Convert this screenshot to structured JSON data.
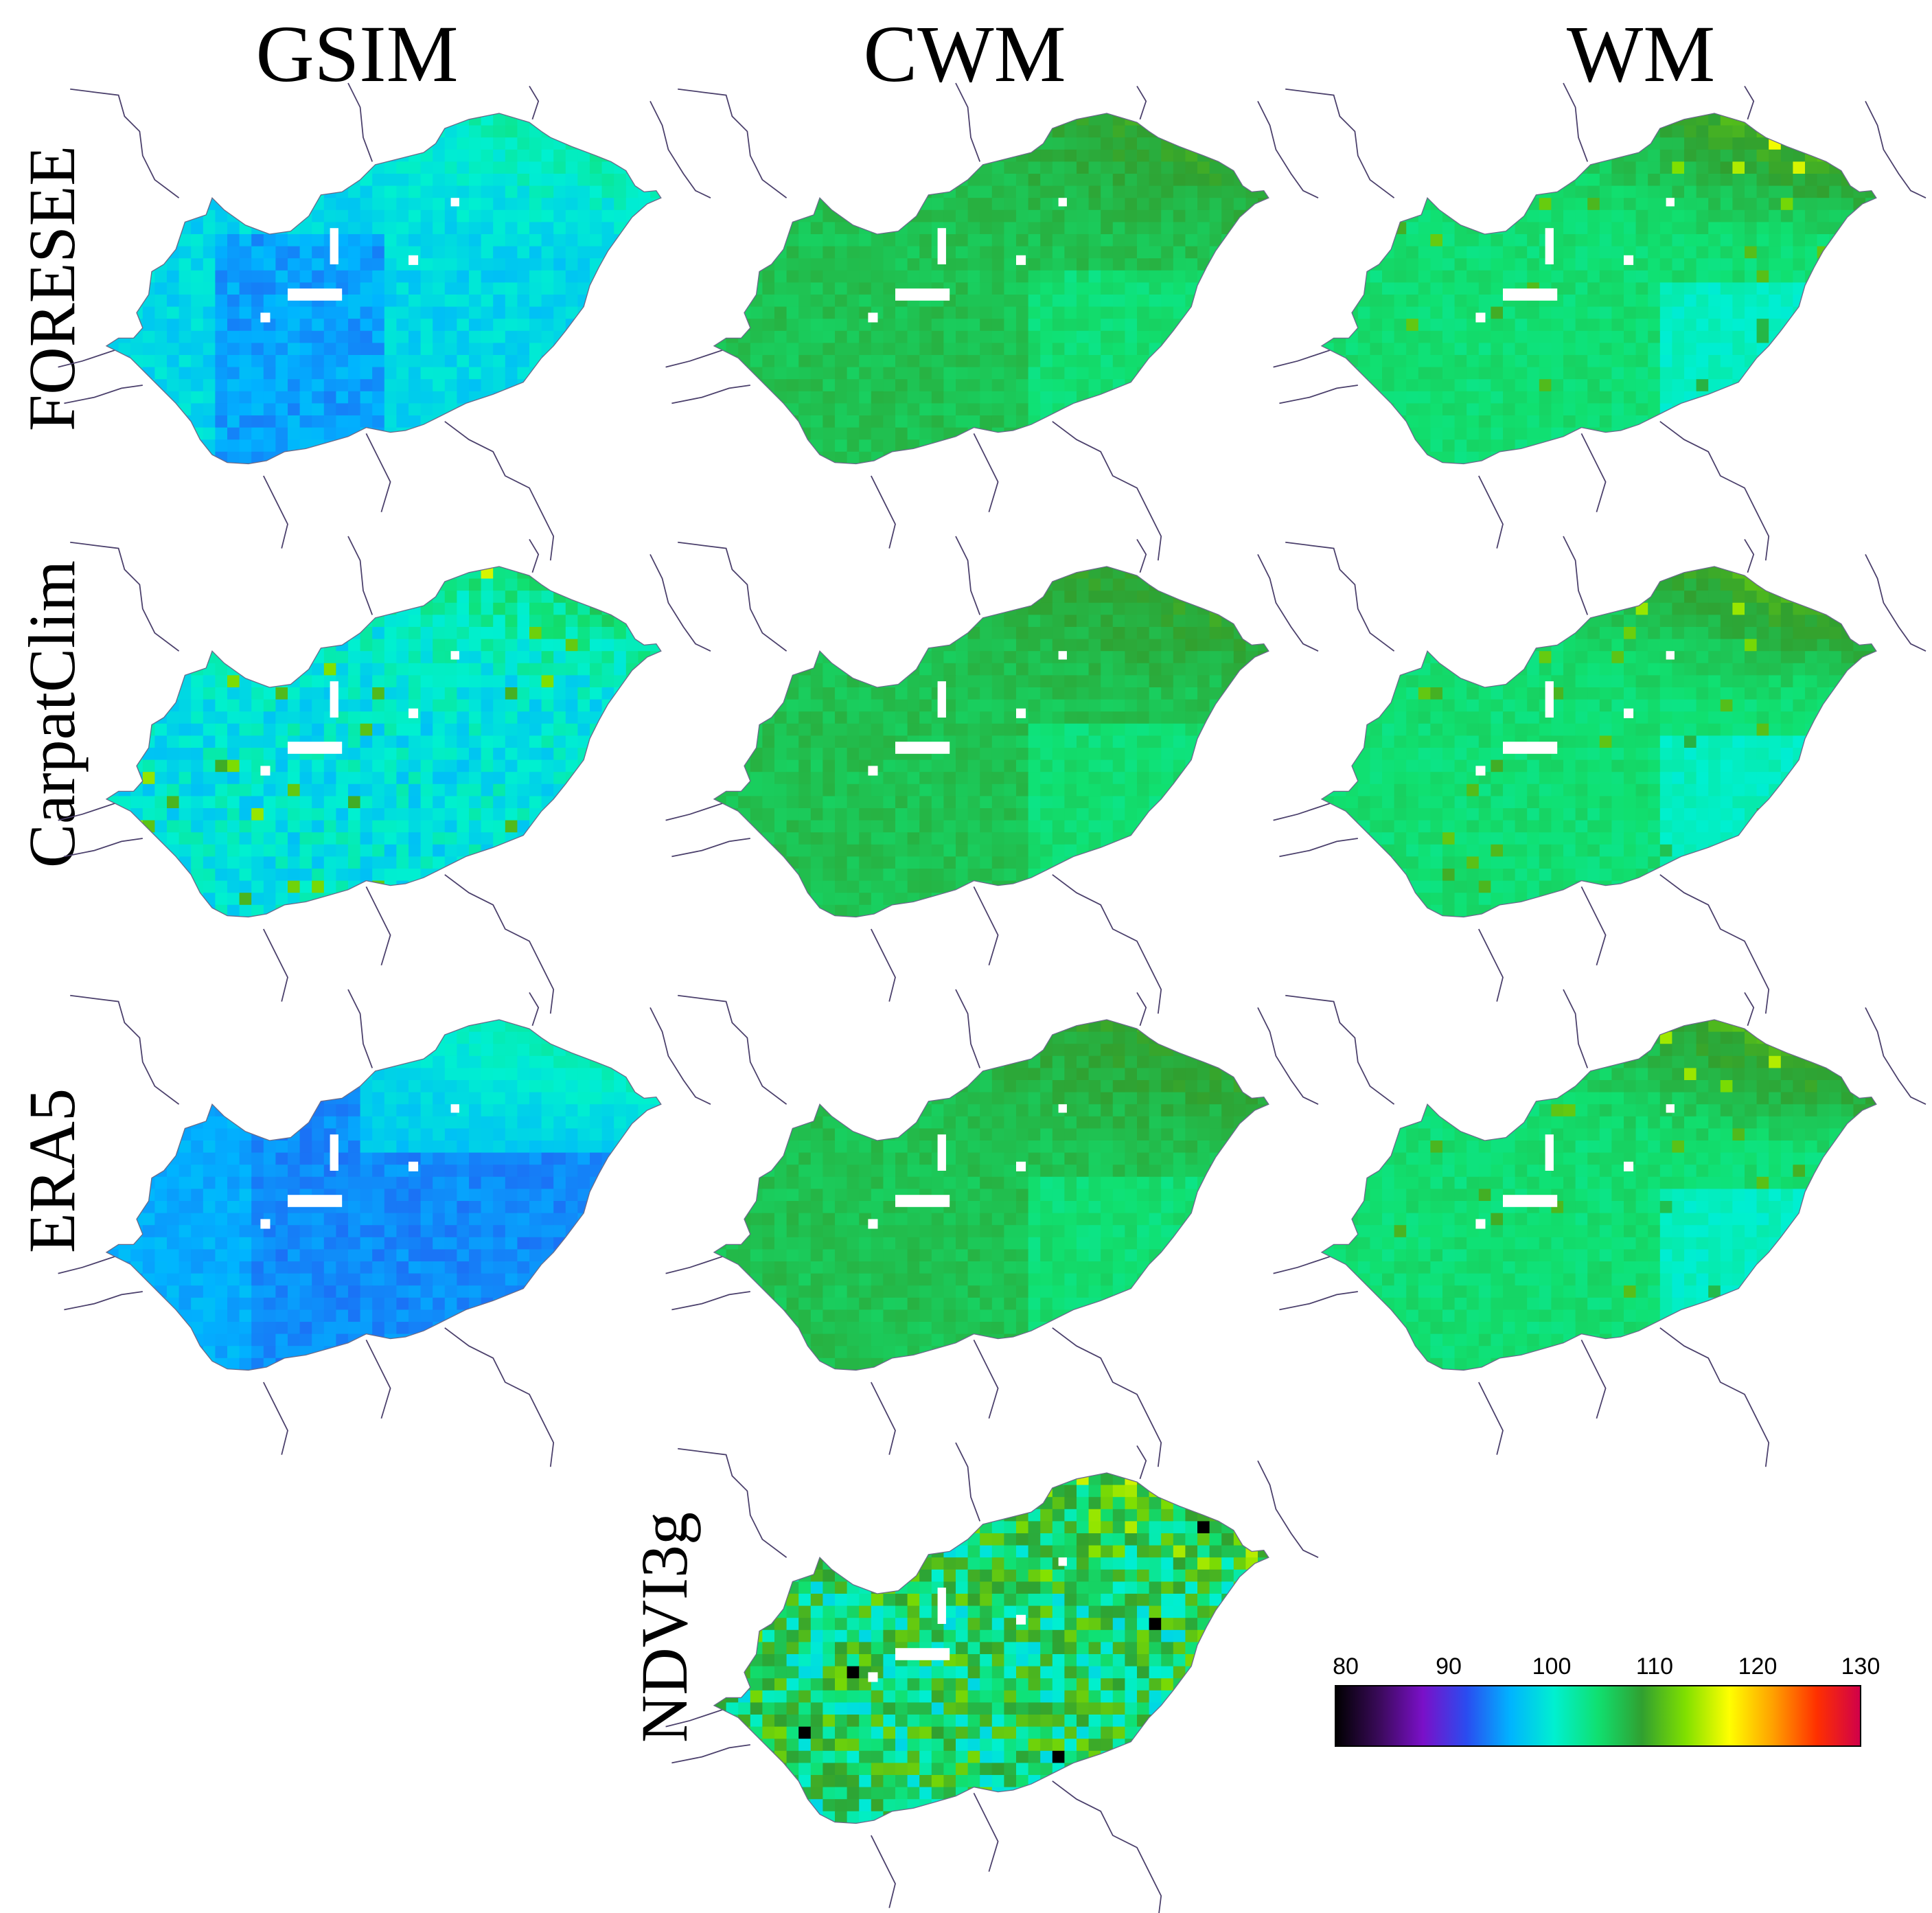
{
  "columns": [
    "GSIM",
    "CWM",
    "WM"
  ],
  "rows": [
    "FORESEE",
    "CarpatClim",
    "ERA5",
    "NDVI3g"
  ],
  "colorbar": {
    "ticks": [
      "80",
      "90",
      "100",
      "110",
      "120",
      "130"
    ],
    "min": 80,
    "max": 130,
    "stops": [
      "#000000",
      "#3a0a5a",
      "#7a10c8",
      "#2a4cf0",
      "#00b4ff",
      "#00f0d0",
      "#10e070",
      "#30a030",
      "#80e000",
      "#ffff00",
      "#ffa000",
      "#ff3000",
      "#d0004a"
    ]
  },
  "panels": [
    {
      "row": "FORESEE",
      "column": "GSIM",
      "palette": "blue",
      "base": 100
    },
    {
      "row": "FORESEE",
      "column": "CWM",
      "palette": "green",
      "base": 106
    },
    {
      "row": "FORESEE",
      "column": "WM",
      "palette": "mixed",
      "base": 104
    },
    {
      "row": "CarpatClim",
      "column": "GSIM",
      "palette": "noisy-blue",
      "base": 100
    },
    {
      "row": "CarpatClim",
      "column": "CWM",
      "palette": "green",
      "base": 107
    },
    {
      "row": "CarpatClim",
      "column": "WM",
      "palette": "mixed",
      "base": 106
    },
    {
      "row": "ERA5",
      "column": "GSIM",
      "palette": "deep-blue",
      "base": 96
    },
    {
      "row": "ERA5",
      "column": "CWM",
      "palette": "green",
      "base": 107
    },
    {
      "row": "ERA5",
      "column": "WM",
      "palette": "mixed",
      "base": 107
    },
    {
      "row": "NDVI3g",
      "column": "CWM",
      "palette": "noisy",
      "base": 108
    }
  ]
}
